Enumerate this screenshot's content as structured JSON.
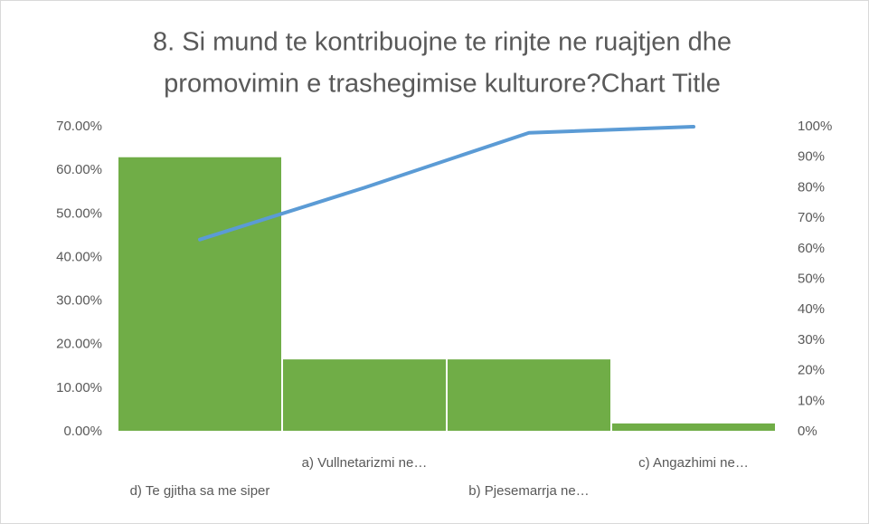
{
  "chart_data": {
    "type": "pareto",
    "title": [
      "8.      Si mund te kontribuojne te rinjte ne ruajtjen dhe",
      "promovimin e trashegimise kulturore?Chart Title"
    ],
    "categories": [
      "d) Te gjitha sa me siper",
      "a) Vullnetarizmi ne…",
      "b) Pjesemarrja ne…",
      "c) Angazhimi ne…"
    ],
    "series": [
      {
        "type": "bar",
        "color": "#70ad47",
        "values": [
          63.2,
          16.8,
          16.8,
          2.1
        ]
      },
      {
        "type": "line",
        "color": "#5b9bd5",
        "axis": "y2",
        "values": [
          63,
          80,
          98,
          100
        ]
      }
    ],
    "ylim": [
      0,
      70
    ],
    "yticks": [
      {
        "value": 0,
        "label": "0.00%"
      },
      {
        "value": 10,
        "label": "10.00%"
      },
      {
        "value": 20,
        "label": "20.00%"
      },
      {
        "value": 30,
        "label": "30.00%"
      },
      {
        "value": 40,
        "label": "40.00%"
      },
      {
        "value": 50,
        "label": "50.00%"
      },
      {
        "value": 60,
        "label": "60.00%"
      },
      {
        "value": 70,
        "label": "70.00%"
      }
    ],
    "y2lim": [
      0,
      100
    ],
    "y2ticks": [
      {
        "value": 0,
        "label": "0%"
      },
      {
        "value": 10,
        "label": "10%"
      },
      {
        "value": 20,
        "label": "20%"
      },
      {
        "value": 30,
        "label": "30%"
      },
      {
        "value": 40,
        "label": "40%"
      },
      {
        "value": 50,
        "label": "50%"
      },
      {
        "value": 60,
        "label": "60%"
      },
      {
        "value": 70,
        "label": "70%"
      },
      {
        "value": 80,
        "label": "80%"
      },
      {
        "value": 90,
        "label": "90%"
      },
      {
        "value": 100,
        "label": "100%"
      }
    ]
  }
}
